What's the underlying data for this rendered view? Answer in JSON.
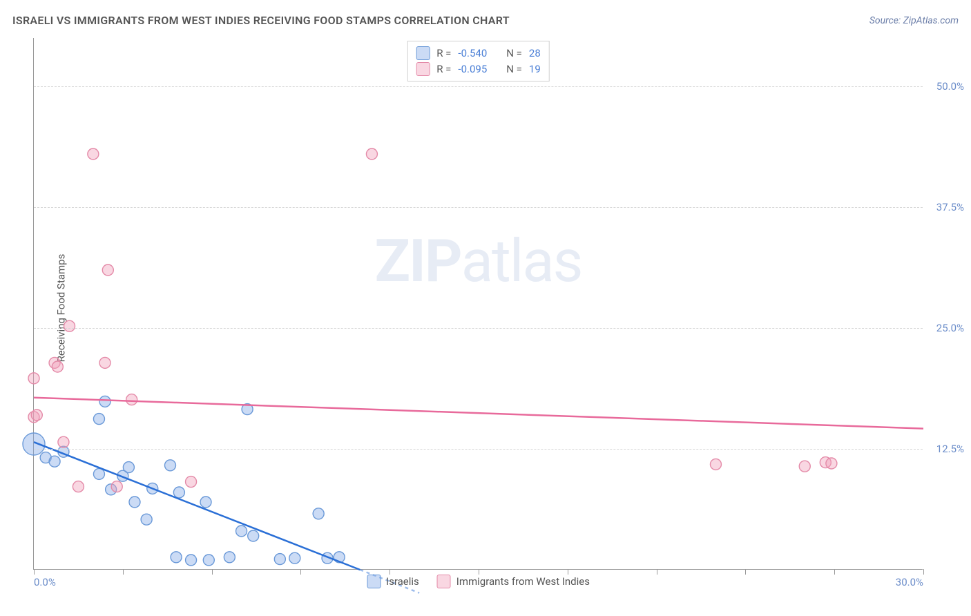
{
  "header": {
    "title": "ISRAELI VS IMMIGRANTS FROM WEST INDIES RECEIVING FOOD STAMPS CORRELATION CHART",
    "source": "Source: ZipAtlas.com"
  },
  "watermark": {
    "zip": "ZIP",
    "atlas": "atlas"
  },
  "chart": {
    "type": "scatter",
    "yaxis_label": "Receiving Food Stamps",
    "background_color": "#ffffff",
    "grid_color": "#d7d7d7",
    "axis_color": "#999999",
    "label_color": "#6a8cc9",
    "text_color": "#555555",
    "xlim": [
      0,
      30
    ],
    "ylim": [
      0,
      55
    ],
    "xticks": [
      0,
      3,
      6,
      9,
      12,
      15,
      18,
      21,
      24,
      27,
      30
    ],
    "xtick_labels": {
      "0": "0.0%",
      "30": "30.0%"
    },
    "yticks": [
      {
        "v": 12.5,
        "label": "12.5%"
      },
      {
        "v": 25.0,
        "label": "25.0%"
      },
      {
        "v": 37.5,
        "label": "37.5%"
      },
      {
        "v": 50.0,
        "label": "50.0%"
      }
    ],
    "series": [
      {
        "name": "Israelis",
        "color_fill": "rgba(130,170,230,0.42)",
        "color_stroke": "#6a99d8",
        "line_color": "#2a6fd6",
        "line_width": 2.5,
        "marker_radius": 8,
        "marker_radius_large": 16,
        "R": "-0.540",
        "N": "28",
        "regression": {
          "x1": 0,
          "y1": 13.2,
          "x2": 11.0,
          "y2": 0
        },
        "dash_extension": {
          "x1": 11.0,
          "y1": 0,
          "x2": 13.0,
          "y2": -2.4
        },
        "points": [
          {
            "x": 0.0,
            "y": 13.0,
            "r": 16
          },
          {
            "x": 0.4,
            "y": 11.6
          },
          {
            "x": 0.7,
            "y": 11.2
          },
          {
            "x": 1.0,
            "y": 12.2
          },
          {
            "x": 2.2,
            "y": 15.6
          },
          {
            "x": 2.2,
            "y": 9.9
          },
          {
            "x": 2.4,
            "y": 17.4
          },
          {
            "x": 2.6,
            "y": 8.3
          },
          {
            "x": 3.0,
            "y": 9.7
          },
          {
            "x": 3.2,
            "y": 10.6
          },
          {
            "x": 3.4,
            "y": 7.0
          },
          {
            "x": 3.8,
            "y": 5.2
          },
          {
            "x": 4.0,
            "y": 8.4
          },
          {
            "x": 4.6,
            "y": 10.8
          },
          {
            "x": 4.8,
            "y": 1.3
          },
          {
            "x": 4.9,
            "y": 8.0
          },
          {
            "x": 5.3,
            "y": 1.0
          },
          {
            "x": 5.8,
            "y": 7.0
          },
          {
            "x": 5.9,
            "y": 1.0
          },
          {
            "x": 6.6,
            "y": 1.3
          },
          {
            "x": 7.0,
            "y": 4.0
          },
          {
            "x": 7.2,
            "y": 16.6
          },
          {
            "x": 7.4,
            "y": 3.5
          },
          {
            "x": 8.3,
            "y": 1.1
          },
          {
            "x": 8.8,
            "y": 1.2
          },
          {
            "x": 9.6,
            "y": 5.8
          },
          {
            "x": 9.9,
            "y": 1.2
          },
          {
            "x": 10.3,
            "y": 1.3
          }
        ]
      },
      {
        "name": "Immigrants from West Indies",
        "color_fill": "rgba(240,160,185,0.42)",
        "color_stroke": "#e48aa8",
        "line_color": "#e86a9b",
        "line_width": 2.5,
        "marker_radius": 8,
        "R": "-0.095",
        "N": "19",
        "regression": {
          "x1": 0,
          "y1": 17.8,
          "x2": 30,
          "y2": 14.6
        },
        "points": [
          {
            "x": 0.0,
            "y": 19.8
          },
          {
            "x": 0.0,
            "y": 15.8
          },
          {
            "x": 0.1,
            "y": 16.0
          },
          {
            "x": 0.7,
            "y": 21.4
          },
          {
            "x": 0.8,
            "y": 21.0
          },
          {
            "x": 1.0,
            "y": 13.2
          },
          {
            "x": 1.2,
            "y": 25.2
          },
          {
            "x": 1.5,
            "y": 8.6
          },
          {
            "x": 2.0,
            "y": 43.0
          },
          {
            "x": 2.4,
            "y": 21.4
          },
          {
            "x": 2.5,
            "y": 31.0
          },
          {
            "x": 2.8,
            "y": 8.6
          },
          {
            "x": 3.3,
            "y": 17.6
          },
          {
            "x": 5.3,
            "y": 9.1
          },
          {
            "x": 11.4,
            "y": 43.0
          },
          {
            "x": 23.0,
            "y": 10.9
          },
          {
            "x": 26.0,
            "y": 10.7
          },
          {
            "x": 26.7,
            "y": 11.1
          },
          {
            "x": 26.9,
            "y": 11.0
          }
        ]
      }
    ],
    "legend_top_labels": {
      "R": "R =",
      "N": "N ="
    },
    "legend_bottom": [
      {
        "label": "Israelis",
        "fill": "rgba(130,170,230,0.42)",
        "stroke": "#6a99d8"
      },
      {
        "label": "Immigrants from West Indies",
        "fill": "rgba(240,160,185,0.42)",
        "stroke": "#e48aa8"
      }
    ]
  }
}
